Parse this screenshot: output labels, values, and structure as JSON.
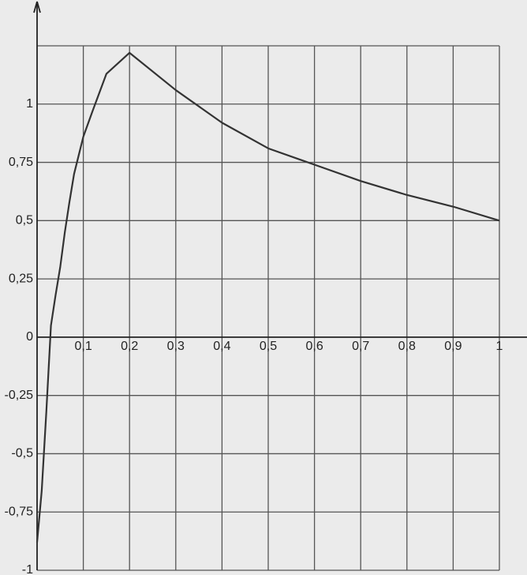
{
  "chart_data": {
    "type": "line",
    "x": [
      0,
      0.01,
      0.02,
      0.03,
      0.04,
      0.05,
      0.06,
      0.07,
      0.08,
      0.09,
      0.1,
      0.12,
      0.15,
      0.2,
      0.3,
      0.4,
      0.5,
      0.6,
      0.7,
      0.8,
      0.9,
      1
    ],
    "series": [
      {
        "color": "#333333",
        "values": [
          -0.88,
          -0.66,
          -0.32,
          0.05,
          0.18,
          0.3,
          0.45,
          0.58,
          0.7,
          0.78,
          0.86,
          0.97,
          1.13,
          1.22,
          1.06,
          0.92,
          0.81,
          0.74,
          0.67,
          0.61,
          0.56,
          0.5
        ]
      }
    ],
    "xlim": [
      0,
      1
    ],
    "ylim": [
      -1,
      1.25
    ],
    "xticks": [
      {
        "value": 0.1,
        "label": "0,1"
      },
      {
        "value": 0.2,
        "label": "0,2"
      },
      {
        "value": 0.3,
        "label": "0,3"
      },
      {
        "value": 0.4,
        "label": "0,4"
      },
      {
        "value": 0.5,
        "label": "0,5"
      },
      {
        "value": 0.6,
        "label": "0,6"
      },
      {
        "value": 0.7,
        "label": "0,7"
      },
      {
        "value": 0.8,
        "label": "0,8"
      },
      {
        "value": 0.9,
        "label": "0,9"
      },
      1
    ],
    "yticks": [
      -1,
      {
        "value": -0.75,
        "label": "-0,75"
      },
      {
        "value": -0.5,
        "label": "-0,5"
      },
      {
        "value": -0.25,
        "label": "-0,25"
      },
      0,
      {
        "value": 0.25,
        "label": "0,25"
      },
      {
        "value": 0.5,
        "label": "0,5"
      },
      {
        "value": 0.75,
        "label": "0,75"
      },
      1
    ],
    "grid": true
  }
}
